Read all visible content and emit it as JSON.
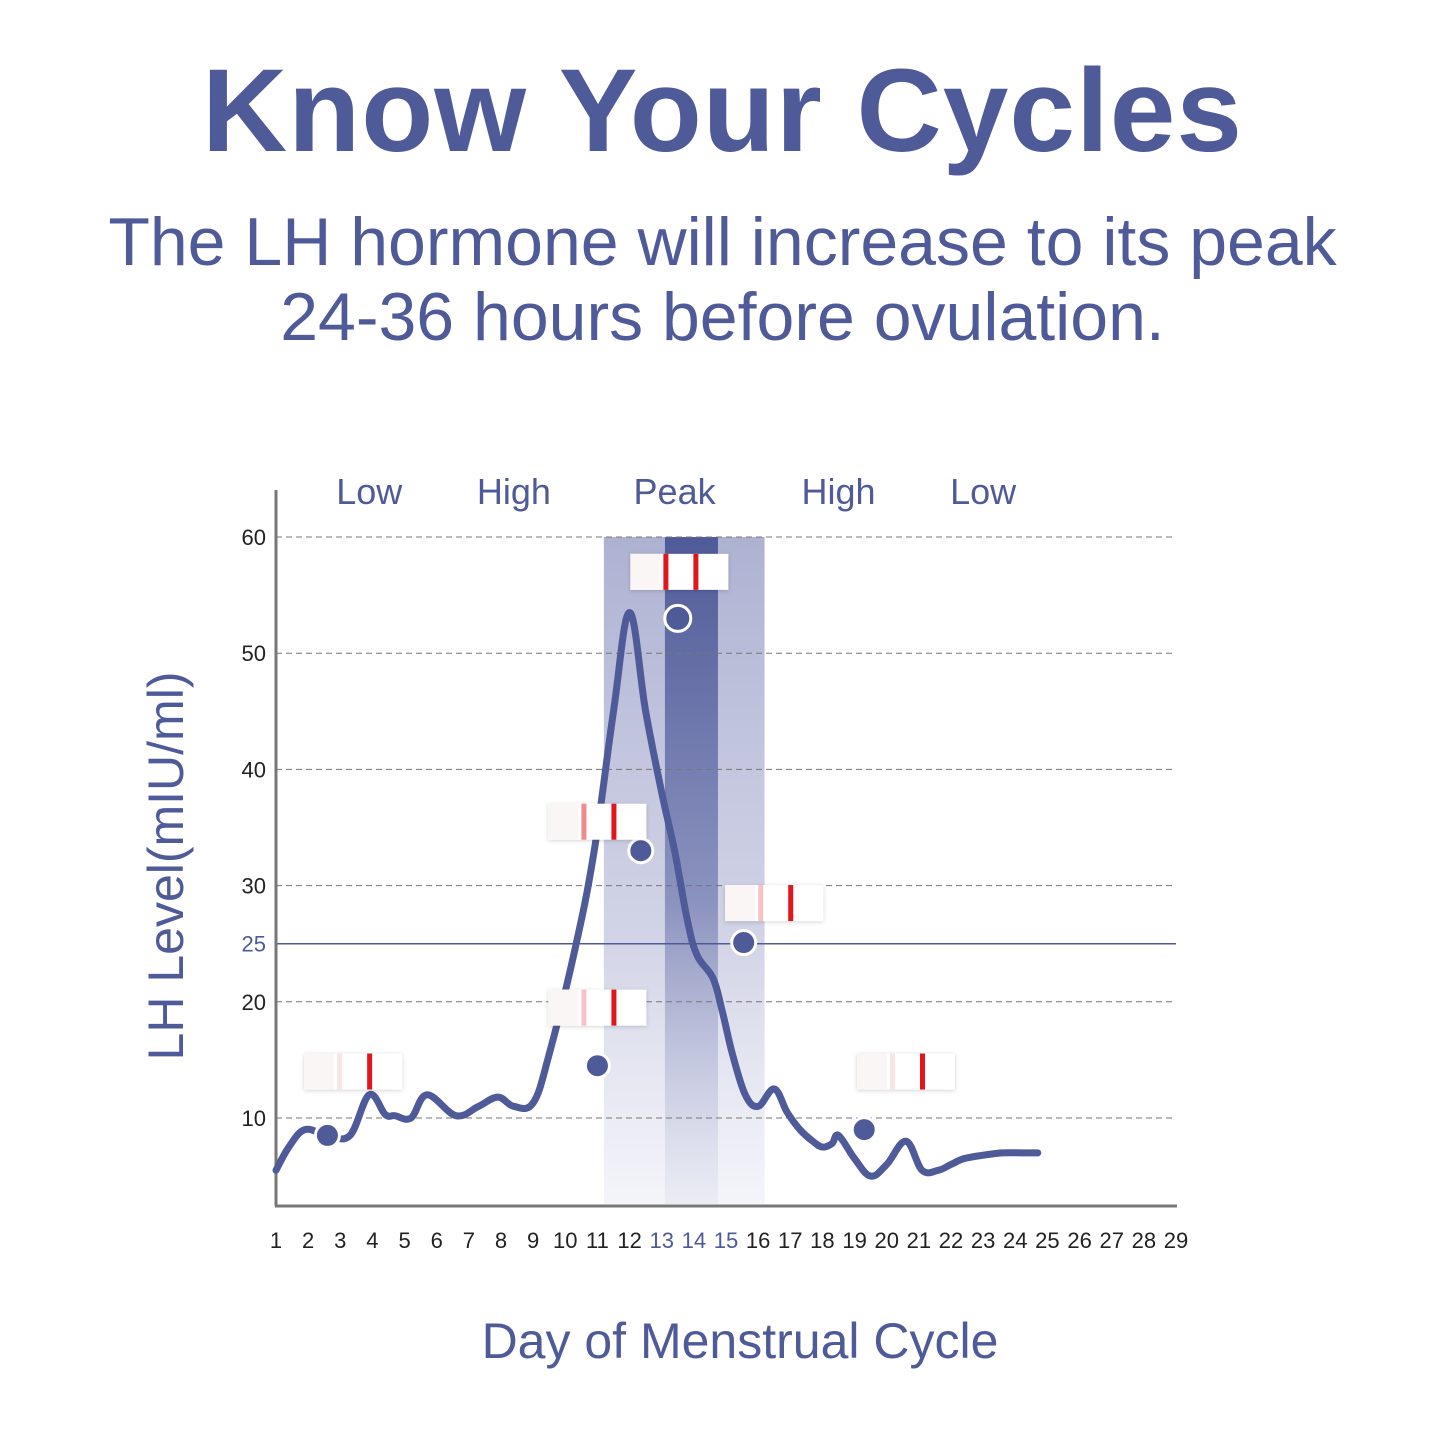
{
  "header": {
    "title": "Know Your Cycles",
    "subtitle_line1": "The LH hormone will increase to its peak",
    "subtitle_line2": "24-36 hours before ovulation."
  },
  "colors": {
    "primary": "#4f5a98",
    "band_light": "#c8cbe0",
    "band_dark": "#4f5a98",
    "test_line": "#e0161b",
    "test_line_faint": "#f08a8c",
    "axis": "#777777",
    "grid": "#777777"
  },
  "chart_data": {
    "type": "line",
    "xlabel": "Day of Menstrual Cycle",
    "ylabel": "LH Level(mIU/ml)",
    "xlim": [
      1,
      29
    ],
    "ylim": [
      3.5,
      62
    ],
    "x_ticks": [
      "1",
      "2",
      "3",
      "4",
      "5",
      "6",
      "7",
      "8",
      "9",
      "10",
      "11",
      "12",
      "13",
      "14",
      "15",
      "16",
      "17",
      "18",
      "19",
      "20",
      "21",
      "22",
      "23",
      "24",
      "25",
      "26",
      "27",
      "28",
      "29"
    ],
    "highlighted_x_ticks": [
      "13",
      "14",
      "15"
    ],
    "y_ticks": [
      10,
      20,
      25,
      30,
      40,
      50,
      60
    ],
    "threshold": 25,
    "phases": [
      {
        "label": "Low",
        "center": 3.9
      },
      {
        "label": "High",
        "center": 8.4
      },
      {
        "label": "Peak",
        "center": 13.4
      },
      {
        "label": "High",
        "center": 18.5
      },
      {
        "label": "Low",
        "center": 23.0
      }
    ],
    "bands": [
      {
        "from": 11.2,
        "to": 16.2,
        "style": "light"
      },
      {
        "from": 13.1,
        "to": 14.75,
        "style": "dark"
      }
    ],
    "series": [
      {
        "x": [
          1,
          1.4,
          1.9,
          2.6,
          3.3,
          3.9,
          4.4,
          4.7,
          5.2,
          5.7,
          6.6,
          7.3,
          7.9,
          8.4,
          9.0,
          9.5,
          10.3,
          10.9,
          11.5,
          12.0,
          12.5,
          13.0,
          13.4,
          13.8,
          14.1,
          14.6,
          14.9,
          15.2,
          15.6,
          16.0,
          16.5,
          16.9,
          17.3,
          17.7,
          18.0,
          18.3,
          18.5,
          19.0,
          19.5,
          20.0,
          20.6,
          21.1,
          21.6,
          22.0,
          22.4,
          23.0,
          23.6,
          24.2,
          24.7
        ],
        "y": [
          5.5,
          7.5,
          9.0,
          8.5,
          8.5,
          12.0,
          10.3,
          10.2,
          10.0,
          12.0,
          10.2,
          11.0,
          11.8,
          11.0,
          11.3,
          15.5,
          24.5,
          33.0,
          45.0,
          53.5,
          45.0,
          38.0,
          33.0,
          27.0,
          24.0,
          22.0,
          19.0,
          15.5,
          12.0,
          11.0,
          12.5,
          10.5,
          9.0,
          8.0,
          7.5,
          7.8,
          8.5,
          6.5,
          5.0,
          6.0,
          8.0,
          5.5,
          5.5,
          6.0,
          6.5,
          6.8,
          7.0,
          7.0,
          7.0
        ]
      }
    ],
    "markers": [
      {
        "x": 2.6,
        "y": 8.5
      },
      {
        "x": 11.0,
        "y": 14.5
      },
      {
        "x": 12.35,
        "y": 33.0
      },
      {
        "x": 13.5,
        "y": 53.0
      },
      {
        "x": 15.55,
        "y": 25.1
      },
      {
        "x": 19.3,
        "y": 9.0
      }
    ],
    "test_strips": [
      {
        "x": 3.4,
        "y": 14.0,
        "control": "none",
        "test": "strong"
      },
      {
        "x": 11.0,
        "y": 19.5,
        "control": "faint",
        "test": "strong"
      },
      {
        "x": 11.0,
        "y": 35.5,
        "control": "medium",
        "test": "strong"
      },
      {
        "x": 13.55,
        "y": 57.0,
        "control": "strong",
        "test": "strong"
      },
      {
        "x": 16.5,
        "y": 28.5,
        "control": "faint",
        "test": "strong"
      },
      {
        "x": 20.6,
        "y": 14.0,
        "control": "none",
        "test": "strong"
      }
    ]
  }
}
